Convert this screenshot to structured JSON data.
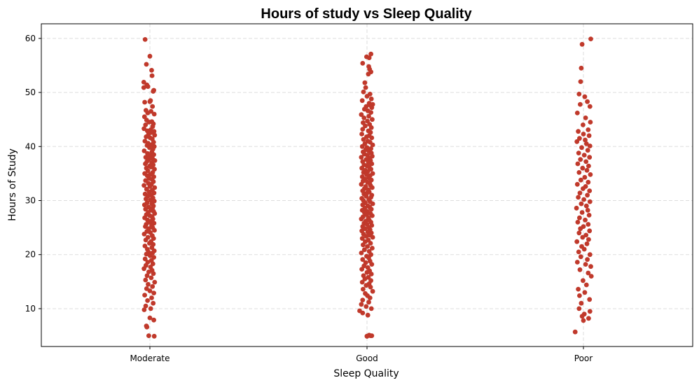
{
  "chart_data": {
    "type": "scatter",
    "title": "Hours of study vs Sleep Quality",
    "xlabel": "Sleep Quality",
    "ylabel": "Hours of Study",
    "categories": [
      "Moderate",
      "Good",
      "Poor"
    ],
    "ylim": [
      3,
      62.7
    ],
    "yticks": [
      10,
      20,
      30,
      40,
      50,
      60
    ],
    "grid": true,
    "point_color": "#c0392b",
    "series": [
      {
        "category": "Moderate",
        "values": [
          59.8,
          56.7,
          55.2,
          54.1,
          53.1,
          51.9,
          51.4,
          51.1,
          50.9,
          50.4,
          50.2,
          48.5,
          48.3,
          48.2,
          47.4,
          46.7,
          46.5,
          46.2,
          46.0,
          45.5,
          44.9,
          44.6,
          44.5,
          44.2,
          44.0,
          43.7,
          43.3,
          43.1,
          42.9,
          42.8,
          42.6,
          42.3,
          42.1,
          41.8,
          41.6,
          41.4,
          41.0,
          40.8,
          40.6,
          40.3,
          40.2,
          40.0,
          39.8,
          39.5,
          39.2,
          39.0,
          38.7,
          38.5,
          38.3,
          38.0,
          37.8,
          37.6,
          37.4,
          37.2,
          37.0,
          36.8,
          36.6,
          36.4,
          36.2,
          36.0,
          35.8,
          35.5,
          35.2,
          35.0,
          34.8,
          34.6,
          34.4,
          34.1,
          33.9,
          33.7,
          33.5,
          33.2,
          33.0,
          32.8,
          32.6,
          32.4,
          32.1,
          31.9,
          31.6,
          31.4,
          31.2,
          31.0,
          30.8,
          30.5,
          30.3,
          30.1,
          29.9,
          29.6,
          29.4,
          29.2,
          29.0,
          28.8,
          28.6,
          28.4,
          28.2,
          28.0,
          27.8,
          27.6,
          27.4,
          27.2,
          27.0,
          26.8,
          26.6,
          26.4,
          26.2,
          26.0,
          25.8,
          25.6,
          25.4,
          25.2,
          25.0,
          24.8,
          24.5,
          24.3,
          24.1,
          23.8,
          23.5,
          23.2,
          23.0,
          22.7,
          22.4,
          22.1,
          21.9,
          21.6,
          21.3,
          21.0,
          20.7,
          20.5,
          20.3,
          20.1,
          19.8,
          19.5,
          19.2,
          18.9,
          18.6,
          18.3,
          18.0,
          17.7,
          17.4,
          17.1,
          16.8,
          16.5,
          16.1,
          15.7,
          15.3,
          14.9,
          14.5,
          14.1,
          13.7,
          13.3,
          12.9,
          12.5,
          12.0,
          11.5,
          11.0,
          10.5,
          10.0,
          9.8,
          8.3,
          7.9,
          6.8,
          6.6,
          5.0,
          4.9
        ],
        "jitter": [
          -0.22,
          0.0,
          -0.16,
          0.08,
          0.1,
          -0.28,
          -0.14,
          -0.09,
          -0.28,
          0.18,
          0.15,
          0.03,
          0.0,
          -0.24,
          0.12,
          -0.18,
          0.05,
          -0.1,
          0.2,
          -0.25,
          -0.15,
          0.09,
          -0.04,
          0.16,
          -0.2,
          0.13,
          -0.27,
          0.04,
          -0.12,
          0.19,
          0.07,
          -0.06,
          0.22,
          -0.17,
          0.01,
          0.11,
          -0.23,
          0.17,
          -0.08,
          0.06,
          -0.13,
          0.2,
          -0.02,
          0.14,
          -0.26,
          0.09,
          -0.11,
          0.18,
          0.0,
          -0.19,
          0.12,
          -0.05,
          0.23,
          -0.14,
          0.08,
          -0.21,
          0.15,
          -0.01,
          0.05,
          -0.16,
          0.21,
          -0.09,
          0.13,
          -0.24,
          0.02,
          -0.12,
          0.18,
          -0.04,
          0.1,
          -0.2,
          0.16,
          -0.07,
          0.07,
          -0.27,
          0.0,
          0.22,
          -0.15,
          0.11,
          -0.03,
          0.19,
          -0.22,
          0.06,
          -0.1,
          0.14,
          -0.18,
          0.03,
          0.2,
          -0.13,
          0.09,
          -0.25,
          0.16,
          -0.06,
          0.12,
          -0.2,
          0.04,
          0.17,
          -0.08,
          0.22,
          -0.16,
          0.0,
          0.1,
          -0.24,
          0.14,
          -0.11,
          0.06,
          -0.03,
          0.19,
          -0.17,
          0.08,
          -0.21,
          0.13,
          -0.05,
          0.21,
          -0.14,
          0.02,
          -0.26,
          0.11,
          -0.09,
          0.17,
          -0.19,
          0.05,
          -0.02,
          0.15,
          -0.23,
          0.09,
          -0.12,
          0.2,
          -0.07,
          0.12,
          -0.16,
          0.01,
          0.18,
          -0.22,
          0.07,
          -0.1,
          0.14,
          -0.18,
          0.03,
          -0.27,
          0.1,
          -0.05,
          0.16,
          -0.13,
          0.06,
          -0.2,
          0.22,
          -0.08,
          0.12,
          -0.15,
          0.0,
          0.18,
          -0.24,
          0.08,
          -0.11,
          0.15,
          -0.19,
          0.04,
          -0.26,
          0.0,
          0.18,
          -0.16,
          -0.14,
          -0.05,
          0.2,
          -0.03,
          0.21
        ]
      },
      {
        "category": "Good",
        "values": [
          57.1,
          56.6,
          56.4,
          55.4,
          54.8,
          54.3,
          53.8,
          53.4,
          51.8,
          50.9,
          50.1,
          49.7,
          49.3,
          48.8,
          48.5,
          48.0,
          47.8,
          47.6,
          47.4,
          47.2,
          46.9,
          46.6,
          46.3,
          45.9,
          45.6,
          45.3,
          45.0,
          44.7,
          44.4,
          44.1,
          43.8,
          43.5,
          43.2,
          42.9,
          42.6,
          42.3,
          42.0,
          41.8,
          41.6,
          41.3,
          41.0,
          40.8,
          40.5,
          40.3,
          40.0,
          39.8,
          39.6,
          39.4,
          39.2,
          39.0,
          38.8,
          38.6,
          38.4,
          38.2,
          38.0,
          37.8,
          37.6,
          37.4,
          37.2,
          37.0,
          36.8,
          36.6,
          36.4,
          36.2,
          36.0,
          35.8,
          35.6,
          35.4,
          35.2,
          35.0,
          34.8,
          34.6,
          34.4,
          34.2,
          34.0,
          33.8,
          33.6,
          33.4,
          33.2,
          33.0,
          32.8,
          32.6,
          32.4,
          32.2,
          32.0,
          31.8,
          31.6,
          31.4,
          31.2,
          31.0,
          30.8,
          30.6,
          30.4,
          30.2,
          30.0,
          29.8,
          29.6,
          29.4,
          29.2,
          29.0,
          28.8,
          28.6,
          28.4,
          28.2,
          28.0,
          27.8,
          27.6,
          27.4,
          27.2,
          27.0,
          26.8,
          26.6,
          26.4,
          26.2,
          26.0,
          25.8,
          25.6,
          25.4,
          25.2,
          25.0,
          24.8,
          24.6,
          24.4,
          24.2,
          24.0,
          23.8,
          23.6,
          23.4,
          23.2,
          23.0,
          22.7,
          22.4,
          22.1,
          21.8,
          21.5,
          21.2,
          20.9,
          20.6,
          20.3,
          20.0,
          19.7,
          19.4,
          19.1,
          18.8,
          18.5,
          18.2,
          17.9,
          17.6,
          17.3,
          17.0,
          16.7,
          16.4,
          16.1,
          15.8,
          15.5,
          15.2,
          14.9,
          14.6,
          14.3,
          14.0,
          13.6,
          13.2,
          12.8,
          12.4,
          12.0,
          11.6,
          11.2,
          10.8,
          10.4,
          10.0,
          9.6,
          9.2,
          8.8,
          5.1,
          5.0,
          5.0,
          4.9,
          4.9,
          4.9
        ],
        "jitter": [
          0.18,
          -0.02,
          0.1,
          -0.2,
          0.08,
          0.12,
          0.18,
          0.06,
          -0.1,
          -0.06,
          -0.16,
          0.14,
          0.0,
          0.2,
          -0.22,
          0.1,
          0.26,
          0.16,
          -0.04,
          0.22,
          -0.12,
          0.04,
          0.18,
          -0.26,
          0.08,
          -0.14,
          0.24,
          0.02,
          -0.18,
          0.12,
          -0.08,
          0.2,
          -0.2,
          0.06,
          0.16,
          -0.24,
          0.1,
          -0.02,
          0.22,
          -0.16,
          0.04,
          0.14,
          -0.1,
          0.26,
          -0.22,
          0.0,
          0.18,
          -0.06,
          0.08,
          -0.18,
          0.2,
          -0.12,
          0.02,
          0.24,
          -0.26,
          0.12,
          -0.04,
          0.16,
          -0.2,
          0.06,
          0.22,
          -0.14,
          0.0,
          0.1,
          -0.24,
          0.18,
          -0.08,
          0.04,
          -0.16,
          0.26,
          -0.02,
          0.14,
          -0.22,
          0.08,
          -0.1,
          0.2,
          -0.18,
          0.02,
          0.12,
          -0.26,
          0.16,
          -0.06,
          0.24,
          -0.12,
          0.06,
          -0.2,
          0.1,
          0.0,
          -0.14,
          0.22,
          -0.04,
          0.18,
          -0.24,
          0.08,
          -0.16,
          0.14,
          -0.08,
          0.26,
          -0.2,
          0.04,
          0.12,
          -0.1,
          0.2,
          -0.22,
          0.02,
          -0.12,
          0.16,
          -0.02,
          0.24,
          -0.18,
          0.06,
          -0.26,
          0.1,
          -0.06,
          0.18,
          -0.14,
          0.0,
          0.22,
          -0.2,
          0.08,
          -0.1,
          0.14,
          -0.24,
          0.04,
          0.2,
          -0.16,
          0.12,
          -0.04,
          0.26,
          -0.22,
          0.06,
          -0.08,
          0.16,
          -0.18,
          0.02,
          0.24,
          -0.12,
          0.1,
          -0.26,
          0.18,
          -0.02,
          0.08,
          -0.2,
          0.14,
          -0.06,
          0.22,
          -0.14,
          0.04,
          -0.24,
          0.12,
          0.0,
          0.2,
          -0.16,
          0.06,
          -0.1,
          0.18,
          -0.22,
          0.1,
          -0.04,
          0.16,
          -0.18,
          0.26,
          -0.08,
          0.02,
          0.14,
          -0.2,
          0.08,
          -0.26,
          -0.04,
          0.2,
          -0.34,
          -0.2,
          0.04,
          0.1,
          0.16,
          0.22
        ]
      },
      {
        "category": "Poor",
        "values": [
          59.9,
          58.9,
          54.5,
          52.0,
          49.7,
          49.2,
          48.3,
          47.8,
          47.4,
          46.2,
          45.3,
          44.5,
          44.0,
          43.1,
          42.8,
          42.3,
          42.0,
          41.5,
          41.2,
          40.9,
          40.5,
          40.1,
          39.8,
          39.3,
          38.8,
          38.4,
          38.0,
          37.6,
          37.2,
          36.8,
          36.4,
          36.0,
          35.6,
          35.2,
          34.8,
          34.3,
          33.8,
          33.4,
          33.0,
          32.6,
          32.2,
          31.8,
          31.4,
          31.0,
          30.6,
          30.2,
          29.8,
          29.4,
          29.0,
          28.6,
          28.2,
          27.8,
          27.3,
          26.8,
          26.4,
          26.0,
          25.6,
          25.2,
          24.8,
          24.4,
          24.0,
          23.6,
          23.2,
          22.8,
          22.4,
          22.0,
          21.5,
          21.0,
          20.5,
          20.0,
          19.6,
          19.1,
          18.6,
          18.2,
          17.8,
          17.2,
          16.6,
          16.0,
          15.2,
          14.4,
          13.6,
          13.0,
          12.4,
          11.7,
          11.0,
          10.0,
          9.5,
          9.0,
          8.6,
          8.2,
          7.8,
          5.7
        ],
        "jitter": [
          0.34,
          -0.06,
          -0.1,
          -0.13,
          -0.2,
          0.06,
          0.18,
          -0.15,
          0.3,
          -0.28,
          0.1,
          0.32,
          -0.02,
          0.22,
          -0.24,
          0.0,
          0.26,
          -0.18,
          0.08,
          -0.3,
          0.14,
          0.3,
          -0.08,
          0.2,
          -0.22,
          0.04,
          0.28,
          -0.14,
          0.12,
          -0.26,
          0.24,
          -0.04,
          0.16,
          -0.2,
          0.32,
          0.06,
          -0.12,
          0.22,
          -0.28,
          0.1,
          -0.02,
          0.28,
          -0.16,
          0.18,
          -0.24,
          0.02,
          0.3,
          -0.1,
          0.14,
          -0.32,
          0.2,
          -0.06,
          0.26,
          -0.18,
          0.08,
          -0.26,
          0.22,
          0.0,
          -0.14,
          0.28,
          -0.2,
          0.12,
          -0.04,
          0.24,
          -0.3,
          0.16,
          -0.08,
          0.04,
          -0.22,
          0.3,
          -0.12,
          0.18,
          -0.28,
          0.1,
          0.34,
          -0.16,
          0.22,
          0.36,
          -0.02,
          0.14,
          -0.24,
          0.06,
          -0.18,
          0.28,
          -0.1,
          -0.2,
          0.3,
          0.04,
          -0.06,
          0.24,
          0.0,
          -0.38
        ]
      }
    ]
  }
}
